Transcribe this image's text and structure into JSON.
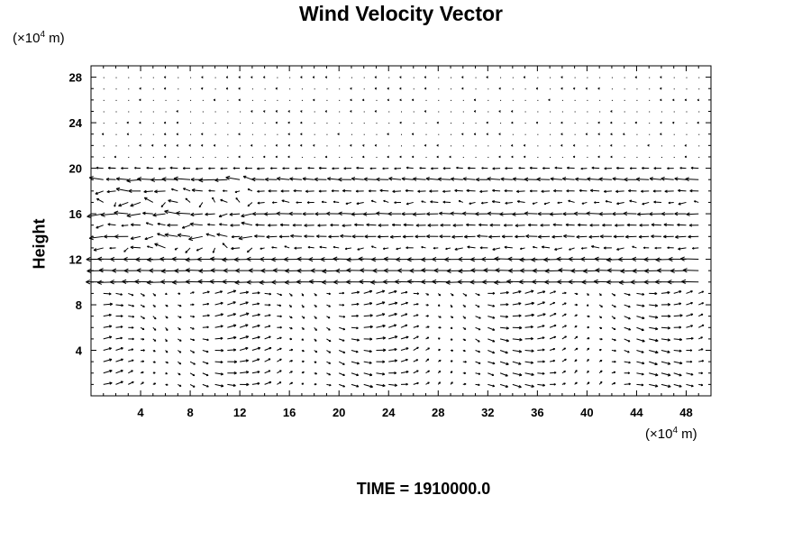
{
  "chart_data": {
    "type": "vector_field",
    "title": "Wind Velocity Vector",
    "ylabel": "Height",
    "y_unit": {
      "prefix": "(×10",
      "exp": "4",
      "suffix": " m)"
    },
    "x_unit": {
      "prefix": "(×10",
      "exp": "4",
      "suffix": " m)"
    },
    "xlim": [
      0,
      50
    ],
    "ylim": [
      0,
      29
    ],
    "x_ticks": [
      4,
      8,
      12,
      16,
      20,
      24,
      28,
      32,
      36,
      40,
      44,
      48
    ],
    "y_ticks": [
      4,
      8,
      12,
      16,
      20,
      24,
      28
    ],
    "grid": {
      "dx": 1,
      "dy": 1
    },
    "layers": [
      {
        "y": 20,
        "u": -1.0,
        "v": 0.0
      },
      {
        "y": 19,
        "u": -1.8,
        "v": 0.1
      },
      {
        "y": 18,
        "u": -1.2,
        "v": 0.0
      },
      {
        "y": 16,
        "u": -1.8,
        "v": 0.0
      },
      {
        "y": 15,
        "u": -1.4,
        "v": 0.0
      },
      {
        "y": 14,
        "u": -1.6,
        "v": 0.0
      },
      {
        "y": 12,
        "u": -2.6,
        "v": 0.0
      },
      {
        "y": 11,
        "u": -2.4,
        "v": 0.0
      },
      {
        "y": 10,
        "u": -2.6,
        "v": 0.0
      }
    ],
    "lower_flow": {
      "u": 1.0,
      "v_amp": 0.4
    }
  },
  "time": {
    "label": "TIME = 1910000.0"
  }
}
